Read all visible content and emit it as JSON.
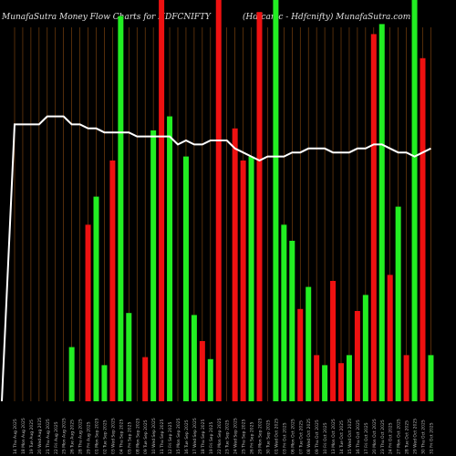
{
  "header": {
    "title": "MunafaSutra  Money  Flow  Charts for HDFCNIFTY",
    "subtitle": "(Hdfcamc - Hdfcnifty) MunafaSutra.com"
  },
  "colors": {
    "background": "#000000",
    "up": "#22ee22",
    "down": "#ee1111",
    "line": "#ffffff",
    "grid": "#8a4a10"
  },
  "chart_data": {
    "type": "bar",
    "title": "MunafaSutra  Money  Flow  Charts for HDFCNIFTY",
    "subtitle": "(Hdfcamc - Hdfcnifty) MunafaSutra.com",
    "ylim": [
      0,
      100
    ],
    "grid": "vertical",
    "categories": [
      "31 Fri Oct 2025",
      "30 Thu Oct 2025",
      "29 Wed Oct 2025",
      "28 Tue Oct 2025",
      "27 Mon Oct 2025",
      "24 Fri Oct 2025",
      "23 Thu Oct 2025",
      "20 Mon Oct 2025",
      "17 Fri Oct 2025",
      "16 Thu Oct 2025",
      "15 Wed Oct 2025",
      "14 Tue Oct 2025",
      "13 Mon Oct 2025",
      "10 Fri Oct 2025",
      "09 Thu Oct 2025",
      "08 Wed Oct 2025",
      "07 Tue Oct 2025",
      "06 Mon Oct 2025",
      "03 Fri Oct 2025",
      "01 Wed Oct 2025",
      "30 Tue Sep 2025",
      "29 Mon Sep 2025",
      "26 Fri Sep 2025",
      "25 Thu Sep 2025",
      "24 Wed Sep 2025",
      "23 Tue Sep 2025",
      "22 Mon Sep 2025",
      "19 Fri Sep 2025",
      "18 Thu Sep 2025",
      "17 Wed Sep 2025",
      "16 Tue Sep 2025",
      "15 Mon Sep 2025",
      "12 Fri Sep 2025",
      "11 Thu Sep 2025",
      "10 Wed Sep 2025",
      "09 Tue Sep 2025",
      "08 Mon Sep 2025",
      "05 Fri Sep 2025",
      "04 Thu Sep 2025",
      "03 Wed Sep 2025",
      "02 Tue Sep 2025",
      "01 Mon Sep 2025",
      "29 Fri Aug 2025",
      "28 Thu Aug 2025",
      "26 Tue Aug 2025",
      "25 Mon Aug 2025",
      "22 Fri Aug 2025",
      "21 Thu Aug 2025",
      "20 Wed Aug 2025",
      "19 Tue Aug 2025",
      "18 Mon Aug 2025",
      "14 Thu Aug 2025"
    ],
    "directions": [
      "up",
      "down",
      "up",
      "down",
      "up",
      "down",
      "up",
      "down",
      "up",
      "down",
      "up",
      "down",
      "down",
      "up",
      "down",
      "up",
      "down",
      "up",
      "up",
      "up",
      "up",
      "down",
      "up",
      "down",
      "down",
      "down",
      "down",
      "up",
      "down",
      "up",
      "up",
      "up",
      "up",
      "down",
      "up",
      "down",
      "up",
      "up",
      "up",
      "down",
      "up",
      "up",
      "down",
      "up",
      "up",
      "down",
      "down",
      "up",
      "down",
      "up",
      "down",
      "up"
    ],
    "values": [
      11.5,
      85.5,
      100,
      11.5,
      48.5,
      31.5,
      94,
      91.5,
      26.5,
      22.5,
      11.5,
      9.5,
      30,
      9,
      11.5,
      28.5,
      23,
      40,
      44,
      100,
      0,
      97,
      61,
      60,
      68,
      0,
      100,
      10.5,
      15,
      21.5,
      61,
      0,
      71,
      100,
      67.5,
      11,
      0,
      22,
      96,
      60,
      9,
      51,
      44,
      0,
      13.5,
      0,
      0,
      0,
      0,
      0,
      0,
      0
    ],
    "flow_line": [
      63,
      62,
      61,
      62,
      62,
      63,
      64,
      64,
      63,
      63,
      62,
      62,
      62,
      63,
      63,
      63,
      62,
      62,
      61,
      61,
      61,
      60,
      61,
      62,
      63,
      65,
      65,
      65,
      64,
      64,
      65,
      64,
      66,
      66,
      66,
      66,
      66,
      67,
      67,
      67,
      67,
      68,
      68,
      69,
      69,
      71,
      71,
      71,
      69,
      69,
      69,
      69
    ]
  }
}
